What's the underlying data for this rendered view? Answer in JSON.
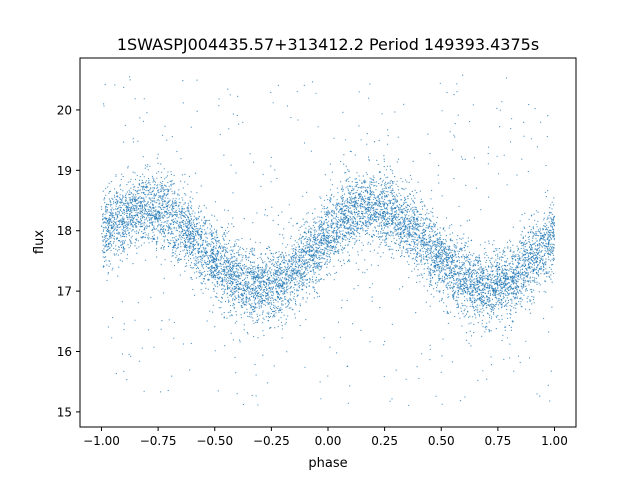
{
  "chart_data": {
    "type": "scatter",
    "title": "1SWASPJ004435.57+313412.2 Period 149393.4375s",
    "xlabel": "phase",
    "ylabel": "flux",
    "xlim": [
      -1.095,
      1.095
    ],
    "ylim": [
      14.75,
      20.86
    ],
    "grid": false,
    "legend": "none",
    "point_color": "#1f77b4",
    "x_ticks": [
      -1.0,
      -0.75,
      -0.5,
      -0.25,
      0.0,
      0.25,
      0.5,
      0.75,
      1.0
    ],
    "x_tick_labels": [
      "−1.00",
      "−0.75",
      "−0.50",
      "−0.25",
      "0.00",
      "0.25",
      "0.50",
      "0.75",
      "1.00"
    ],
    "y_ticks": [
      15,
      16,
      17,
      18,
      19,
      20
    ],
    "y_tick_labels": [
      "15",
      "16",
      "17",
      "18",
      "19",
      "20"
    ],
    "binned_mean_flux": {
      "phase": [
        -1.0,
        -0.9,
        -0.8,
        -0.7,
        -0.6,
        -0.5,
        -0.4,
        -0.3,
        -0.2,
        -0.1,
        0.0,
        0.1,
        0.2,
        0.3,
        0.4,
        0.5,
        0.6,
        0.7,
        0.8,
        0.9,
        1.0
      ],
      "flux": [
        17.93,
        18.27,
        18.4,
        18.27,
        17.93,
        17.51,
        17.17,
        17.04,
        17.17,
        17.51,
        17.93,
        18.27,
        18.4,
        18.27,
        17.93,
        17.51,
        17.17,
        17.04,
        17.17,
        17.51,
        17.93
      ]
    },
    "scatter_spread_flux": 0.3,
    "outlier_flux_range": [
      15.1,
      20.6
    ]
  }
}
